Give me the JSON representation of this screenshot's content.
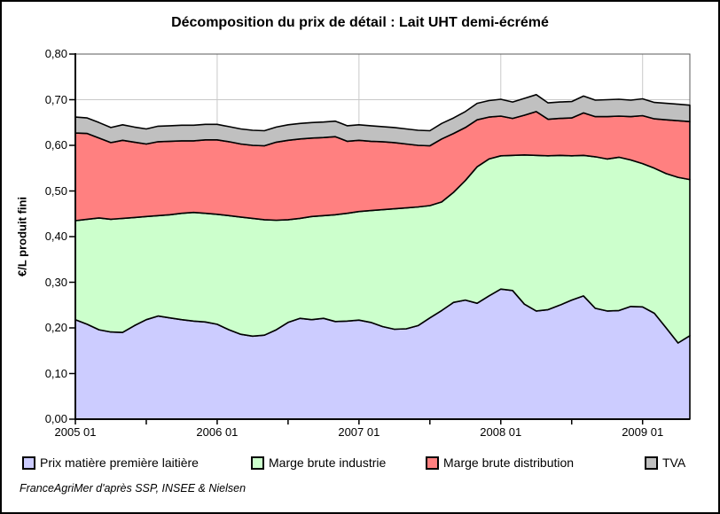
{
  "title": "Décomposition du prix de détail : Lait UHT demi-écrémé",
  "y_axis": {
    "title": "€/L produit fini",
    "tick_labels": [
      "0,00",
      "0,10",
      "0,20",
      "0,30",
      "0,40",
      "0,50",
      "0,60",
      "0,70",
      "0,80"
    ]
  },
  "x_axis": {
    "labels": [
      "2005 01",
      "2006 01",
      "2007 01",
      "2008 01",
      "2009 01"
    ]
  },
  "legend": {
    "position": "bottom"
  },
  "source": "FranceAgriMer d'après SSP, INSEE & Nielsen",
  "chart_data": {
    "type": "area",
    "stacked": true,
    "title": "Décomposition du prix de détail : Lait UHT demi-écrémé",
    "ylabel": "€/L produit fini",
    "ylim": [
      0,
      0.8
    ],
    "grid": true,
    "x_frequency": "monthly",
    "x": [
      "2005-01",
      "2005-02",
      "2005-03",
      "2005-04",
      "2005-05",
      "2005-06",
      "2005-07",
      "2005-08",
      "2005-09",
      "2005-10",
      "2005-11",
      "2005-12",
      "2006-01",
      "2006-02",
      "2006-03",
      "2006-04",
      "2006-05",
      "2006-06",
      "2006-07",
      "2006-08",
      "2006-09",
      "2006-10",
      "2006-11",
      "2006-12",
      "2007-01",
      "2007-02",
      "2007-03",
      "2007-04",
      "2007-05",
      "2007-06",
      "2007-07",
      "2007-08",
      "2007-09",
      "2007-10",
      "2007-11",
      "2007-12",
      "2008-01",
      "2008-02",
      "2008-03",
      "2008-04",
      "2008-05",
      "2008-06",
      "2008-07",
      "2008-08",
      "2008-09",
      "2008-10",
      "2008-11",
      "2008-12",
      "2009-01",
      "2009-02",
      "2009-03",
      "2009-04",
      "2009-05"
    ],
    "series": [
      {
        "name": "Prix matière première laitière",
        "color": "#CCCCFF",
        "values": [
          0.218,
          0.208,
          0.196,
          0.191,
          0.19,
          0.205,
          0.218,
          0.226,
          0.222,
          0.218,
          0.215,
          0.213,
          0.208,
          0.196,
          0.186,
          0.182,
          0.184,
          0.196,
          0.212,
          0.221,
          0.218,
          0.221,
          0.214,
          0.215,
          0.217,
          0.212,
          0.203,
          0.197,
          0.198,
          0.205,
          0.222,
          0.238,
          0.256,
          0.261,
          0.254,
          0.27,
          0.285,
          0.282,
          0.252,
          0.237,
          0.24,
          0.25,
          0.261,
          0.27,
          0.243,
          0.237,
          0.238,
          0.247,
          0.246,
          0.232,
          0.2,
          0.167,
          0.183
        ]
      },
      {
        "name": "Marge brute industrie",
        "color": "#CCFFCC",
        "values": [
          0.217,
          0.23,
          0.245,
          0.247,
          0.25,
          0.237,
          0.226,
          0.22,
          0.226,
          0.233,
          0.238,
          0.238,
          0.241,
          0.25,
          0.257,
          0.258,
          0.253,
          0.24,
          0.225,
          0.219,
          0.226,
          0.225,
          0.234,
          0.236,
          0.238,
          0.245,
          0.256,
          0.264,
          0.265,
          0.26,
          0.246,
          0.238,
          0.241,
          0.262,
          0.299,
          0.3,
          0.292,
          0.296,
          0.327,
          0.341,
          0.337,
          0.328,
          0.316,
          0.308,
          0.332,
          0.333,
          0.336,
          0.321,
          0.314,
          0.318,
          0.338,
          0.363,
          0.342
        ]
      },
      {
        "name": "Marge brute distribution",
        "color": "#FF8080",
        "values": [
          0.192,
          0.188,
          0.175,
          0.168,
          0.171,
          0.165,
          0.159,
          0.162,
          0.161,
          0.159,
          0.157,
          0.161,
          0.163,
          0.162,
          0.16,
          0.16,
          0.162,
          0.171,
          0.174,
          0.174,
          0.172,
          0.171,
          0.171,
          0.158,
          0.156,
          0.152,
          0.149,
          0.145,
          0.14,
          0.135,
          0.131,
          0.138,
          0.129,
          0.116,
          0.103,
          0.092,
          0.087,
          0.081,
          0.087,
          0.096,
          0.08,
          0.081,
          0.083,
          0.093,
          0.088,
          0.093,
          0.09,
          0.095,
          0.105,
          0.108,
          0.118,
          0.124,
          0.127
        ]
      },
      {
        "name": "TVA",
        "color": "#C0C0C0",
        "values": [
          0.035,
          0.034,
          0.034,
          0.033,
          0.034,
          0.033,
          0.033,
          0.034,
          0.034,
          0.034,
          0.034,
          0.034,
          0.034,
          0.033,
          0.033,
          0.033,
          0.033,
          0.033,
          0.034,
          0.034,
          0.034,
          0.034,
          0.034,
          0.034,
          0.034,
          0.034,
          0.033,
          0.033,
          0.033,
          0.033,
          0.033,
          0.034,
          0.034,
          0.035,
          0.036,
          0.036,
          0.037,
          0.036,
          0.037,
          0.037,
          0.036,
          0.036,
          0.036,
          0.037,
          0.036,
          0.037,
          0.037,
          0.036,
          0.037,
          0.036,
          0.036,
          0.036,
          0.036
        ]
      }
    ]
  }
}
